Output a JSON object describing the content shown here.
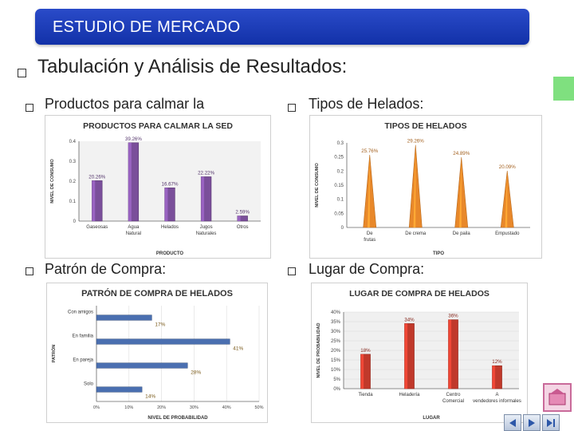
{
  "header": {
    "title": "ESTUDIO DE MERCADO"
  },
  "main": {
    "heading": "Tabulación y Análisis de Resultados:",
    "sections": [
      {
        "label": "Productos para calmar la"
      },
      {
        "label": "Tipos de Helados:"
      },
      {
        "label": "Patrón de Compra:"
      },
      {
        "label": "Lugar de Compra:"
      }
    ]
  },
  "chart_data": [
    {
      "type": "bar",
      "title": "PRODUCTOS PARA CALMAR LA SED",
      "xlabel": "PRODUCTO",
      "ylabel": "NIVEL DE CONSUMO",
      "categories": [
        "Gaseosas",
        "Agua Natural",
        "Helados",
        "Jugos Naturales",
        "Otros"
      ],
      "values": [
        0.2026,
        0.3926,
        0.1667,
        0.2222,
        0.0259
      ],
      "data_labels": [
        "20.26%",
        "39.26%",
        "16.67%",
        "22.22%",
        "2.59%"
      ],
      "ylim": [
        0,
        0.4
      ],
      "yticks": [
        "0",
        "0.1",
        "0.2",
        "0.3",
        "0.4"
      ],
      "color": "#7a4f9a"
    },
    {
      "type": "bar",
      "title": "TIPOS DE HELADOS",
      "xlabel": "TIPO",
      "ylabel": "NIVEL DE CONSUMO",
      "categories": [
        "De frutas",
        "De crema",
        "De paila",
        "Empustado"
      ],
      "values": [
        0.2576,
        0.2926,
        0.2489,
        0.2009
      ],
      "data_labels": [
        "25.76%",
        "29.26%",
        "24.89%",
        "20.09%"
      ],
      "ylim": [
        0,
        0.3
      ],
      "yticks": [
        "0",
        "0.05",
        "0.1",
        "0.15",
        "0.2",
        "0.25",
        "0.3"
      ],
      "color": "#e8882a"
    },
    {
      "type": "bar",
      "orientation": "horizontal",
      "title": "PATRÓN DE COMPRA DE HELADOS",
      "xlabel": "NIVEL DE PROBABILIDAD",
      "ylabel": "PATRÓN",
      "categories": [
        "Con amigos",
        "En familia",
        "En pareja",
        "Solo"
      ],
      "values": [
        0.17,
        0.41,
        0.28,
        0.14
      ],
      "data_labels": [
        "17%",
        "41%",
        "28%",
        "14%"
      ],
      "xlim": [
        0,
        0.5
      ],
      "xticks": [
        "0%",
        "10%",
        "20%",
        "30%",
        "40%",
        "50%"
      ],
      "color": "#4a6fb0"
    },
    {
      "type": "bar",
      "title": "LUGAR DE COMPRA DE HELADOS",
      "xlabel": "LUGAR",
      "ylabel": "NIVEL DE PROBABILIDAD",
      "categories": [
        "Tienda",
        "Heladería",
        "Centro Comercial",
        "A vendedores informales"
      ],
      "values": [
        0.18,
        0.34,
        0.36,
        0.12
      ],
      "data_labels": [
        "18%",
        "34%",
        "36%",
        "12%"
      ],
      "ylim": [
        0,
        0.4
      ],
      "yticks": [
        "0%",
        "5%",
        "10%",
        "15%",
        "20%",
        "25%",
        "30%",
        "35%",
        "40%"
      ],
      "color": "#c0392b"
    }
  ]
}
